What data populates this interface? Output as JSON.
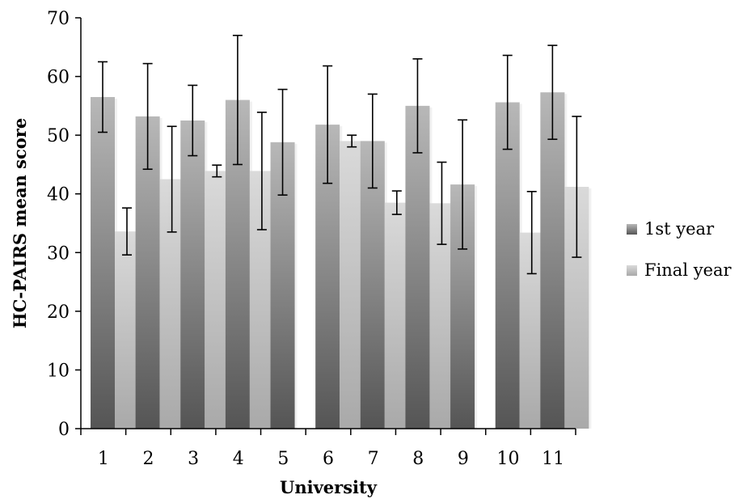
{
  "chart_data": {
    "type": "bar",
    "title": "",
    "xlabel": "University",
    "ylabel": "HC-PAIRS mean score",
    "ylim": [
      0,
      70
    ],
    "yticks": [
      0,
      10,
      20,
      30,
      40,
      50,
      60,
      70
    ],
    "categories": [
      "1",
      "2",
      "3",
      "4",
      "5",
      "6",
      "7",
      "8",
      "9",
      "10",
      "11"
    ],
    "legend_position": "right",
    "series": [
      {
        "name": "1st year",
        "color": "#6e6e6e",
        "values": [
          56.5,
          53.2,
          52.5,
          56.0,
          48.8,
          51.8,
          49.0,
          55.0,
          41.6,
          55.6,
          57.3
        ],
        "errors": [
          6.0,
          9.0,
          6.0,
          11.0,
          9.0,
          10.0,
          8.0,
          8.0,
          11.0,
          8.0,
          8.0
        ]
      },
      {
        "name": "Final year",
        "color": "#c8c8c8",
        "values": [
          33.6,
          42.5,
          43.9,
          43.9,
          null,
          49.0,
          38.5,
          38.4,
          null,
          33.4,
          41.2
        ],
        "errors": [
          4.0,
          9.0,
          1.0,
          10.0,
          null,
          1.0,
          2.0,
          7.0,
          null,
          7.0,
          12.0
        ]
      }
    ]
  }
}
